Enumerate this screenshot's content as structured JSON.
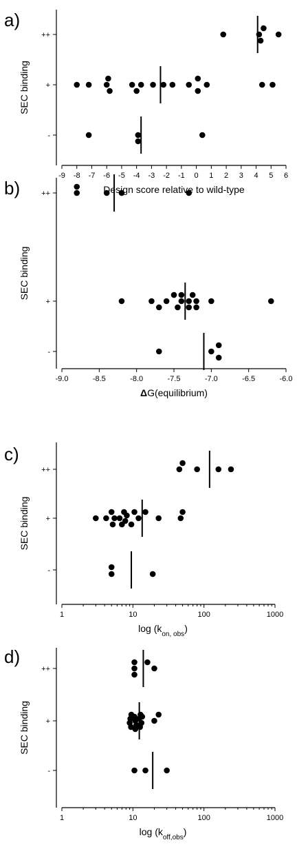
{
  "chart_data": [
    {
      "panel_label": "a)",
      "type": "scatter",
      "xlabel": "Design score relative to wild-type",
      "ylabel": "SEC binding",
      "xscale": "linear",
      "xlim": [
        -9,
        6
      ],
      "xticks": [
        -9,
        -8,
        -7,
        -6,
        -5,
        -4,
        -3,
        -2,
        -1,
        0,
        1,
        2,
        3,
        4,
        5,
        6
      ],
      "xtick_labels": [
        "-9",
        "-8",
        "-7",
        "-6",
        "-5",
        "-4",
        "-3",
        "-2",
        "-1",
        "0",
        "1",
        "2",
        "3",
        "4",
        "5",
        "6"
      ],
      "categories": [
        "-",
        "+",
        "++"
      ],
      "series": [
        {
          "category": "++",
          "points": [
            {
              "x": 1.8,
              "y": 0
            },
            {
              "x": 4.2,
              "y": 0
            },
            {
              "x": 4.5,
              "y": 0.18
            },
            {
              "x": 4.3,
              "y": -0.18
            },
            {
              "x": 5.5,
              "y": 0
            }
          ],
          "median": 4.1
        },
        {
          "category": "+",
          "points": [
            {
              "x": -8.0,
              "y": 0
            },
            {
              "x": -7.2,
              "y": 0
            },
            {
              "x": -6.0,
              "y": 0
            },
            {
              "x": -5.9,
              "y": 0.18
            },
            {
              "x": -5.8,
              "y": -0.18
            },
            {
              "x": -4.3,
              "y": 0
            },
            {
              "x": -4.0,
              "y": -0.18
            },
            {
              "x": -3.7,
              "y": 0
            },
            {
              "x": -2.9,
              "y": 0
            },
            {
              "x": -2.2,
              "y": 0
            },
            {
              "x": -1.6,
              "y": 0
            },
            {
              "x": -0.5,
              "y": 0
            },
            {
              "x": 0.1,
              "y": 0.18
            },
            {
              "x": 0.1,
              "y": -0.18
            },
            {
              "x": 0.7,
              "y": 0
            },
            {
              "x": 4.4,
              "y": 0
            },
            {
              "x": 5.1,
              "y": 0
            }
          ],
          "median": -2.4
        },
        {
          "category": "-",
          "points": [
            {
              "x": -7.2,
              "y": 0
            },
            {
              "x": -3.9,
              "y": 0
            },
            {
              "x": -3.9,
              "y": -0.18
            },
            {
              "x": 0.4,
              "y": 0
            }
          ],
          "median": -3.7
        }
      ]
    },
    {
      "panel_label": "b)",
      "type": "scatter",
      "xlabel": "ΔG(equilibrium)",
      "ylabel": "SEC binding",
      "xscale": "linear",
      "xlim": [
        -9.0,
        -6.0
      ],
      "xticks": [
        -9.0,
        -8.5,
        -8.0,
        -7.5,
        -7.0,
        -6.5,
        -6.0
      ],
      "xtick_labels": [
        "-9.0",
        "-8.5",
        "-8.0",
        "-7.5",
        "-7.0",
        "-6.5",
        "-6.0"
      ],
      "categories": [
        "-",
        "+",
        "++"
      ],
      "series": [
        {
          "category": "++",
          "points": [
            {
              "x": -8.8,
              "y": 0.18
            },
            {
              "x": -8.8,
              "y": 0
            },
            {
              "x": -8.4,
              "y": 0
            },
            {
              "x": -8.2,
              "y": 0
            },
            {
              "x": -7.3,
              "y": 0
            }
          ],
          "median": -8.3
        },
        {
          "category": "+",
          "points": [
            {
              "x": -8.2,
              "y": 0
            },
            {
              "x": -7.8,
              "y": 0
            },
            {
              "x": -7.7,
              "y": -0.18
            },
            {
              "x": -7.6,
              "y": 0
            },
            {
              "x": -7.5,
              "y": 0.18
            },
            {
              "x": -7.45,
              "y": -0.18
            },
            {
              "x": -7.4,
              "y": 0
            },
            {
              "x": -7.4,
              "y": 0.18
            },
            {
              "x": -7.3,
              "y": 0
            },
            {
              "x": -7.3,
              "y": -0.18
            },
            {
              "x": -7.25,
              "y": 0.18
            },
            {
              "x": -7.2,
              "y": 0
            },
            {
              "x": -7.2,
              "y": -0.18
            },
            {
              "x": -7.0,
              "y": 0
            },
            {
              "x": -6.2,
              "y": 0
            }
          ],
          "median": -7.35
        },
        {
          "category": "-",
          "points": [
            {
              "x": -7.7,
              "y": 0
            },
            {
              "x": -7.0,
              "y": 0
            },
            {
              "x": -6.9,
              "y": 0.18
            },
            {
              "x": -6.9,
              "y": -0.18
            }
          ],
          "median": -7.1
        }
      ]
    },
    {
      "panel_label": "c)",
      "type": "scatter",
      "xlabel": "log (k",
      "xlabel_sub": "on, obs",
      "xlabel_close": ")",
      "ylabel": "SEC binding",
      "xscale": "log",
      "xlim": [
        1,
        1000
      ],
      "xticks": [
        1,
        10,
        100,
        1000
      ],
      "xtick_labels": [
        "1",
        "10",
        "100",
        "1000"
      ],
      "categories": [
        "-",
        "+",
        "++"
      ],
      "series": [
        {
          "category": "++",
          "points": [
            {
              "x": 45,
              "y": 0
            },
            {
              "x": 50,
              "y": 0.18
            },
            {
              "x": 80,
              "y": 0
            },
            {
              "x": 160,
              "y": 0
            },
            {
              "x": 240,
              "y": 0
            }
          ],
          "median": 120
        },
        {
          "category": "+",
          "points": [
            {
              "x": 3,
              "y": 0
            },
            {
              "x": 4.2,
              "y": 0
            },
            {
              "x": 5,
              "y": 0.18
            },
            {
              "x": 5.2,
              "y": -0.18
            },
            {
              "x": 5.5,
              "y": 0
            },
            {
              "x": 6.5,
              "y": 0
            },
            {
              "x": 7,
              "y": -0.18
            },
            {
              "x": 7.5,
              "y": 0.18
            },
            {
              "x": 7.8,
              "y": -0.08
            },
            {
              "x": 8.2,
              "y": 0.08
            },
            {
              "x": 9.5,
              "y": -0.18
            },
            {
              "x": 10.5,
              "y": 0.18
            },
            {
              "x": 12,
              "y": 0
            },
            {
              "x": 15,
              "y": 0.18
            },
            {
              "x": 23,
              "y": 0
            },
            {
              "x": 47,
              "y": 0
            },
            {
              "x": 50,
              "y": 0.18
            }
          ],
          "median": 13.5
        },
        {
          "category": "-",
          "points": [
            {
              "x": 5,
              "y": 0.08
            },
            {
              "x": 5,
              "y": -0.12
            },
            {
              "x": 19,
              "y": -0.12
            }
          ],
          "median": 9.5
        }
      ]
    },
    {
      "panel_label": "d)",
      "type": "scatter",
      "xlabel": "log (k",
      "xlabel_sub": "off,obs",
      "xlabel_close": ")",
      "ylabel": "SEC binding",
      "xscale": "log",
      "xlim": [
        1,
        1000
      ],
      "xticks": [
        1,
        10,
        100,
        1000
      ],
      "xtick_labels": [
        "1",
        "10",
        "100",
        "1000"
      ],
      "categories": [
        "-",
        "+",
        "++"
      ],
      "series": [
        {
          "category": "++",
          "points": [
            {
              "x": 10.5,
              "y": 0.18
            },
            {
              "x": 10.5,
              "y": 0
            },
            {
              "x": 10.5,
              "y": -0.18
            },
            {
              "x": 16,
              "y": 0.18
            },
            {
              "x": 20,
              "y": 0
            }
          ],
          "median": 14
        },
        {
          "category": "+",
          "points": [
            {
              "x": 9.5,
              "y": 0.18
            },
            {
              "x": 9.2,
              "y": 0.06
            },
            {
              "x": 9.0,
              "y": -0.06
            },
            {
              "x": 9.4,
              "y": -0.18
            },
            {
              "x": 10.5,
              "y": 0.12
            },
            {
              "x": 10.8,
              "y": 0
            },
            {
              "x": 11.2,
              "y": -0.12
            },
            {
              "x": 10.8,
              "y": -0.24
            },
            {
              "x": 12.2,
              "y": 0.06
            },
            {
              "x": 12.8,
              "y": 0.18
            },
            {
              "x": 13.2,
              "y": -0.06
            },
            {
              "x": 12.6,
              "y": -0.18
            },
            {
              "x": 13.5,
              "y": 0.12
            },
            {
              "x": 20,
              "y": 0
            },
            {
              "x": 23,
              "y": 0.18
            }
          ],
          "median": 12.3
        },
        {
          "category": "-",
          "points": [
            {
              "x": 10.5,
              "y": 0
            },
            {
              "x": 15,
              "y": 0
            },
            {
              "x": 30,
              "y": 0
            }
          ],
          "median": 19
        }
      ]
    }
  ]
}
